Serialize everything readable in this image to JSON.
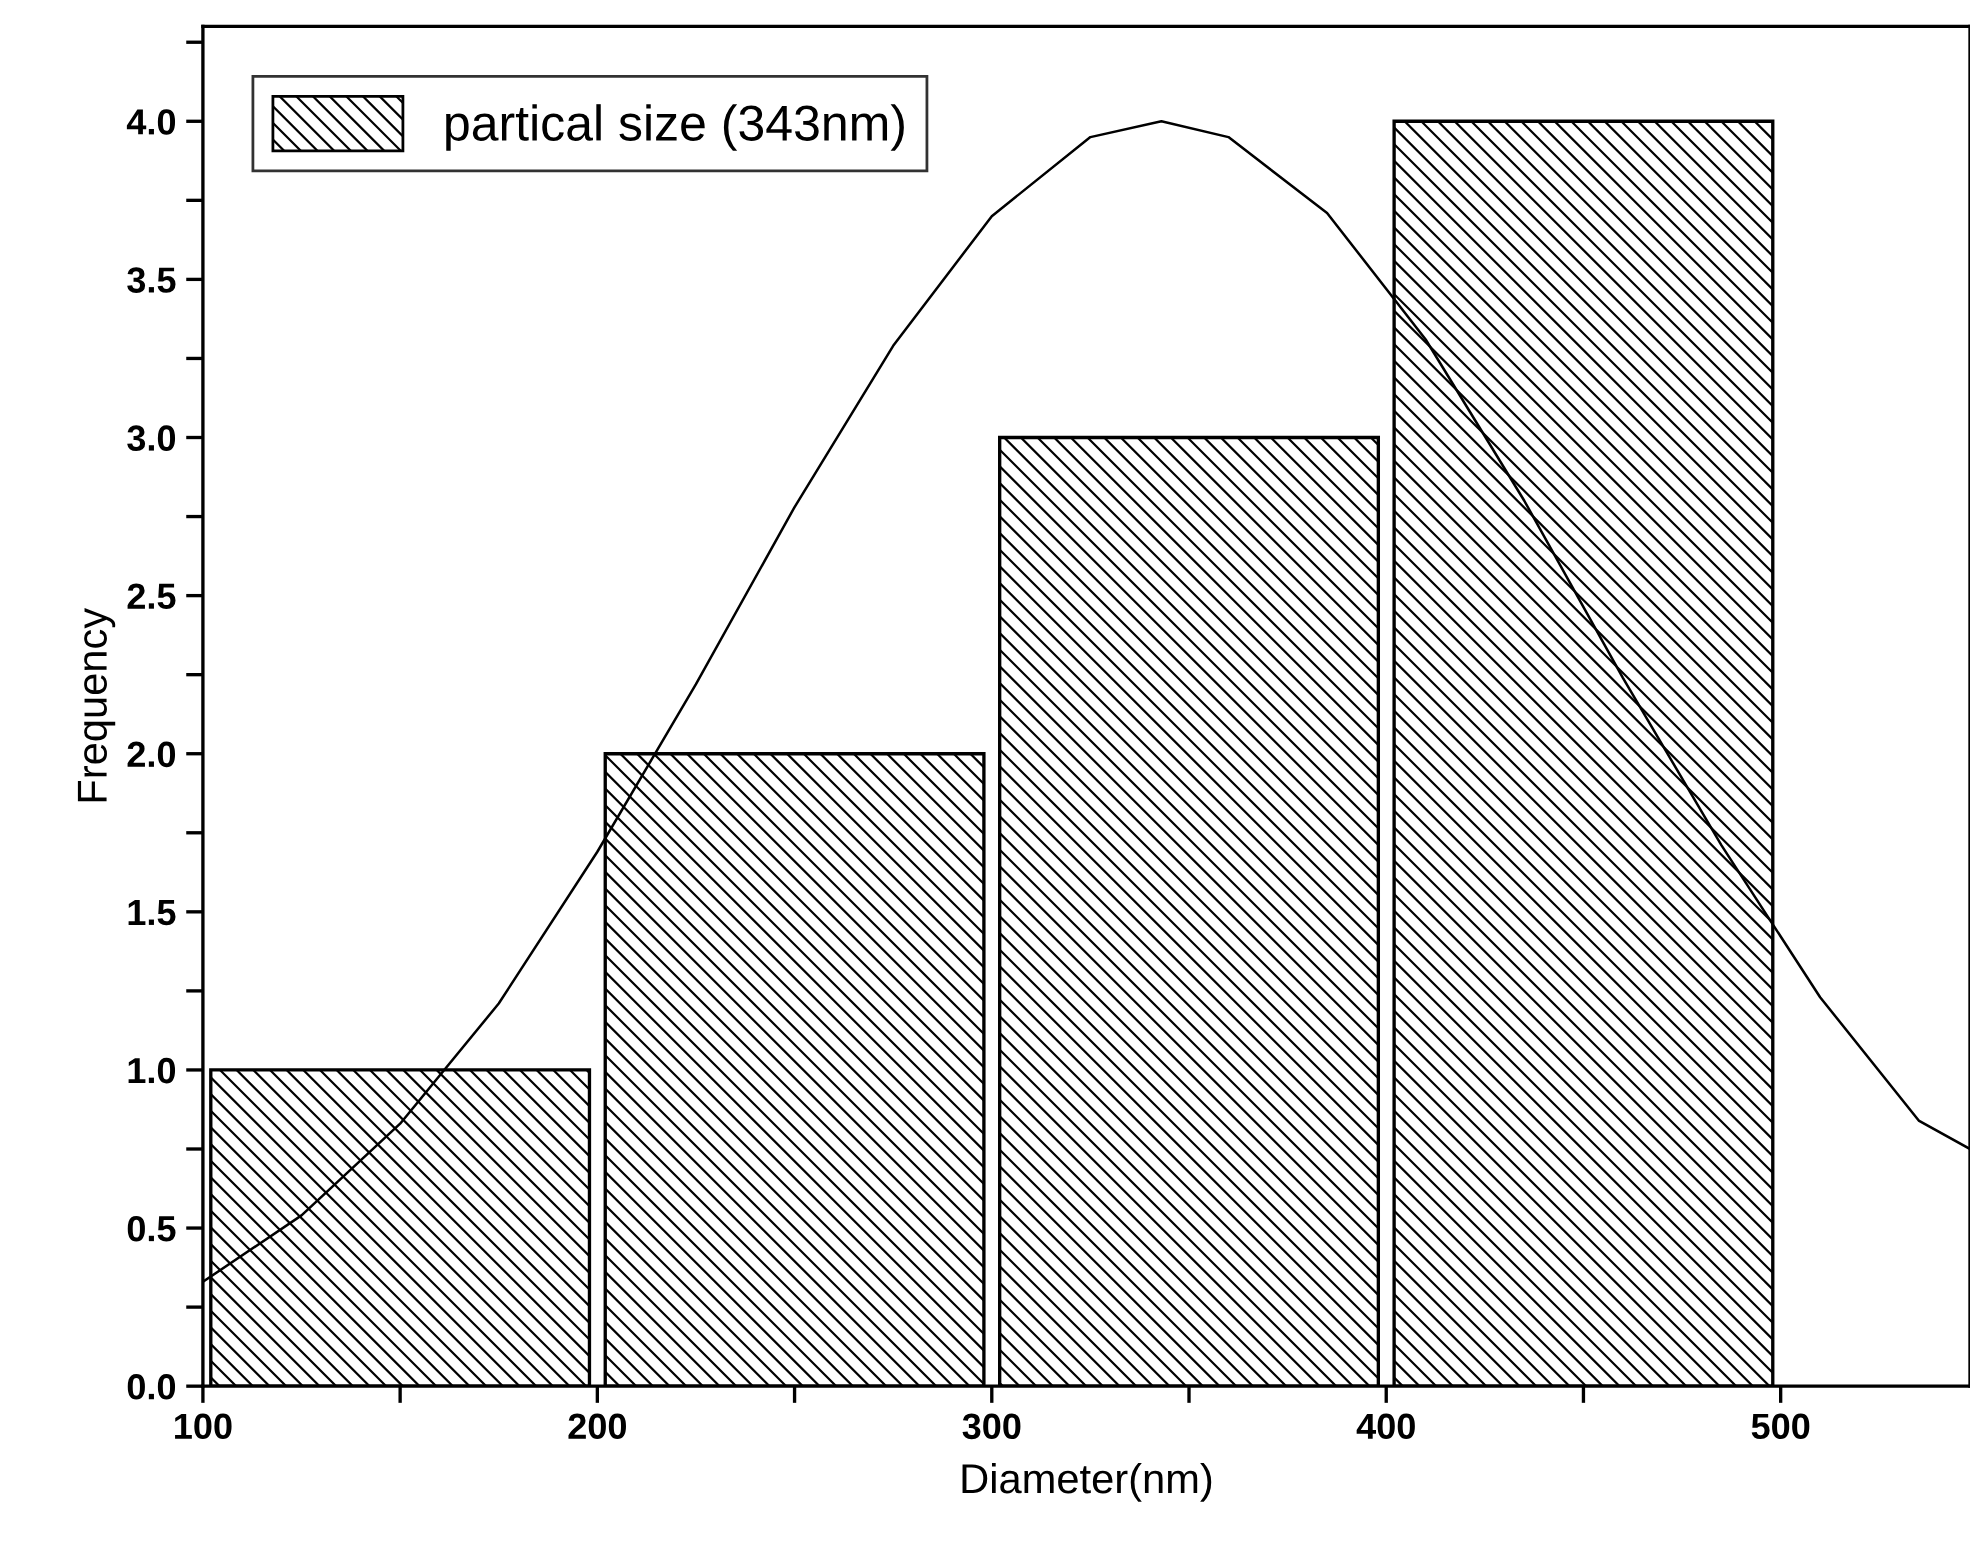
{
  "chart_data": {
    "type": "histogram",
    "xlabel": "Diameter(nm)",
    "ylabel": "Frequency",
    "bins": [
      100,
      200,
      300,
      400,
      500
    ],
    "series": [
      {
        "name": "partical size (343nm)",
        "color": "#000000",
        "values": [
          1,
          2,
          3,
          4
        ]
      },
      {
        "type": "line",
        "color": "#000000",
        "x": [
          100,
          125,
          150,
          175,
          200,
          225,
          250,
          275,
          300,
          325,
          343,
          360,
          385,
          410,
          435,
          460,
          485,
          510,
          535,
          548
        ],
        "values": [
          0.33,
          0.54,
          0.83,
          1.21,
          1.69,
          2.22,
          2.78,
          3.29,
          3.7,
          3.95,
          4.0,
          3.95,
          3.71,
          3.31,
          2.8,
          2.24,
          1.71,
          1.23,
          0.84,
          0.75
        ]
      }
    ],
    "xlim": [
      100,
      548
    ],
    "ylim": [
      0,
      4.3
    ],
    "xticks": [
      100,
      {
        "value": 150,
        "label": null
      },
      200,
      {
        "value": 250,
        "label": null
      },
      300,
      {
        "value": 350,
        "label": null
      },
      400,
      {
        "value": 450,
        "label": null
      },
      500
    ],
    "yticks": [
      {
        "value": 0,
        "label": "0.0"
      },
      {
        "value": 0.25,
        "label": null
      },
      {
        "value": 0.5,
        "label": "0.5"
      },
      {
        "value": 0.75,
        "label": null
      },
      {
        "value": 1,
        "label": "1.0"
      },
      {
        "value": 1.25,
        "label": null
      },
      {
        "value": 1.5,
        "label": "1.5"
      },
      {
        "value": 1.75,
        "label": null
      },
      {
        "value": 2,
        "label": "2.0"
      },
      {
        "value": 2.25,
        "label": null
      },
      {
        "value": 2.5,
        "label": "2.5"
      },
      {
        "value": 2.75,
        "label": null
      },
      {
        "value": 3,
        "label": "3.0"
      },
      {
        "value": 3.25,
        "label": null
      },
      {
        "value": 3.5,
        "label": "3.5"
      },
      {
        "value": 3.75,
        "label": null
      },
      {
        "value": 4,
        "label": "4.0"
      },
      {
        "value": 4.25,
        "label": null
      }
    ],
    "grid": false,
    "legend": "top left"
  }
}
